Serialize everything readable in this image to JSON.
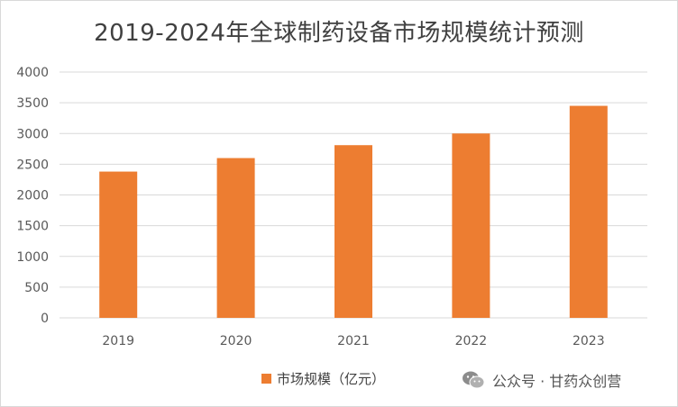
{
  "chart_data": {
    "type": "bar",
    "title": "2019-2024年全球制药设备市场规模统计预测",
    "categories": [
      "2019",
      "2020",
      "2021",
      "2022",
      "2023"
    ],
    "series": [
      {
        "name": "市场规模（亿元）",
        "values": [
          2380,
          2600,
          2810,
          3000,
          3450
        ],
        "color": "#ed7d31"
      }
    ],
    "ylim": [
      0,
      4000
    ],
    "yticks": [
      0,
      500,
      1000,
      1500,
      2000,
      2500,
      3000,
      3500,
      4000
    ],
    "grid": true,
    "legend_position": "bottom"
  },
  "watermark": {
    "text": "公众号 · 甘药众创营",
    "icon": "wechat-icon"
  }
}
